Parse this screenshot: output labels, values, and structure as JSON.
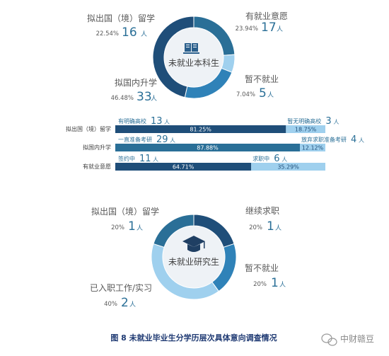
{
  "chart_data": [
    {
      "type": "pie",
      "center_label": "未就业本科生",
      "slices": [
        {
          "label": "有就业意愿",
          "percent": 23.94,
          "count": 17,
          "unit": "人",
          "color": "#2a6f97"
        },
        {
          "label": "暂不就业",
          "percent": 7.04,
          "count": 5,
          "unit": "人",
          "color": "#9fd0ee"
        },
        {
          "label": "拟出国（境）留学",
          "percent": 22.54,
          "count": 16,
          "unit": "人",
          "color": "#2f82b8"
        },
        {
          "label": "拟国内升学",
          "percent": 46.48,
          "count": 33,
          "unit": "人",
          "color": "#1f4e79"
        }
      ]
    },
    {
      "type": "bar",
      "orientation": "horizontal-stacked",
      "rows": [
        {
          "category": "拟出国（境）留学",
          "segments": [
            {
              "label": "有明确高校",
              "count": 13,
              "unit": "人",
              "percent_label": "81.25%",
              "value": 81.25,
              "color": "#1f4e79"
            },
            {
              "label": "暂无明确高校",
              "count": 3,
              "unit": "人",
              "percent_label": "18.75%",
              "value": 18.75,
              "color": "#9fd0ee"
            }
          ]
        },
        {
          "category": "拟国内升学",
          "segments": [
            {
              "label": "一直准备考研",
              "count": 29,
              "unit": "人",
              "percent_label": "87.88%",
              "value": 87.88,
              "color": "#2a6f97"
            },
            {
              "label": "放弃求职准备考研",
              "count": 4,
              "unit": "人",
              "percent_label": "12.12%",
              "value": 12.12,
              "color": "#9fd0ee"
            }
          ]
        },
        {
          "category": "有就业意愿",
          "segments": [
            {
              "label": "签约中",
              "count": 11,
              "unit": "人",
              "percent_label": "64.71%",
              "value": 64.71,
              "color": "#1f4e79"
            },
            {
              "label": "求职中",
              "count": 6,
              "unit": "人",
              "percent_label": "35.29%",
              "value": 35.29,
              "color": "#9fd0ee"
            }
          ]
        }
      ]
    },
    {
      "type": "pie",
      "center_label": "未就业研究生",
      "slices": [
        {
          "label": "继续求职",
          "percent": 20,
          "percent_label": "20%",
          "count": 1,
          "unit": "人",
          "color": "#1f4e79"
        },
        {
          "label": "暂不就业",
          "percent": 20,
          "percent_label": "20%",
          "count": 1,
          "unit": "人",
          "color": "#2f82b8"
        },
        {
          "label": "已入职工作/实习",
          "percent": 40,
          "percent_label": "40%",
          "count": 2,
          "unit": "人",
          "color": "#9fd0ee"
        },
        {
          "label": "拟出国（境）留学",
          "percent": 20,
          "percent_label": "20%",
          "count": 1,
          "unit": "人",
          "color": "#2a6f97"
        }
      ]
    }
  ],
  "caption": "图 8  未就业毕业生分学历层次具体意向调查情况",
  "watermark": "中财赣豆",
  "icons": {
    "donut1_center": "book-icon",
    "donut2_center": "graduation-cap-icon",
    "watermark": "wechat-icon"
  }
}
